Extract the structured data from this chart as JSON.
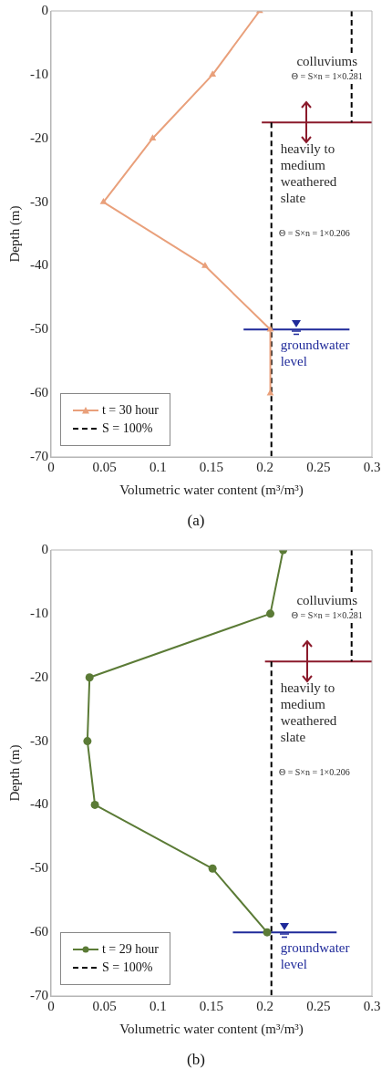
{
  "chart_data": [
    {
      "type": "line",
      "xlabel": "Volumetric water content (m³/m³)",
      "ylabel": "Depth (m)",
      "xlim": [
        0,
        0.3
      ],
      "xticks": [
        0,
        0.05,
        0.1,
        0.15,
        0.2,
        0.25,
        0.3
      ],
      "ylim": [
        -70,
        0
      ],
      "yticks": [
        0,
        -10,
        -20,
        -30,
        -40,
        -50,
        -60,
        -70
      ],
      "grid": false,
      "legend": "bottom left",
      "series": [
        {
          "name": "t = 30 hour",
          "color": "#e9a07b",
          "marker": "triangle",
          "x": [
            0.195,
            0.151,
            0.095,
            0.049,
            0.144,
            0.205,
            0.205
          ],
          "values": [
            0,
            -10,
            -20,
            -30,
            -40,
            -50,
            -60
          ]
        },
        {
          "name": "S = 100%",
          "color": "#000000",
          "marker": "none",
          "line_style": "dashed",
          "x": [
            0.206,
            0.206
          ],
          "values": [
            -17.5,
            -70
          ]
        },
        {
          "color": "#000000",
          "marker": "none",
          "line_style": "dashed",
          "x": [
            0.281,
            0.281
          ],
          "values": [
            0,
            -17.5
          ]
        },
        {
          "color": "#8b1a2b",
          "marker": "none",
          "x": [
            0.197,
            0.3
          ],
          "values": [
            -17.5,
            -17.5
          ]
        },
        {
          "color": "#1f2a9a",
          "marker": "none",
          "x": [
            0.18,
            0.279
          ],
          "values": [
            -50,
            -50
          ]
        }
      ],
      "annotations": [
        "colluviums",
        "Θ = S×n = 1×0.281",
        "heavily to medium weathered slate",
        "Θ = S×n = 1×0.206",
        "groundwater level",
        "(a)"
      ]
    },
    {
      "type": "line",
      "xlabel": "Volumetric water content (m³/m³)",
      "ylabel": "Depth (m)",
      "xlim": [
        0,
        0.3
      ],
      "xticks": [
        0,
        0.05,
        0.1,
        0.15,
        0.2,
        0.25,
        0.3
      ],
      "ylim": [
        -70,
        0
      ],
      "yticks": [
        0,
        -10,
        -20,
        -30,
        -40,
        -50,
        -60,
        -70
      ],
      "grid": false,
      "legend": "bottom left",
      "series": [
        {
          "name": "t = 29 hour",
          "color": "#5b7b36",
          "marker": "circle",
          "x": [
            0.217,
            0.205,
            0.036,
            0.034,
            0.041,
            0.151,
            0.202
          ],
          "values": [
            0,
            -10,
            -20,
            -30,
            -40,
            -50,
            -60
          ]
        },
        {
          "name": "S = 100%",
          "color": "#000000",
          "marker": "none",
          "line_style": "dashed",
          "x": [
            0.206,
            0.206
          ],
          "values": [
            -17.5,
            -70
          ]
        },
        {
          "color": "#000000",
          "marker": "none",
          "line_style": "dashed",
          "x": [
            0.281,
            0.281
          ],
          "values": [
            0,
            -17.5
          ]
        },
        {
          "color": "#8b1a2b",
          "marker": "none",
          "x": [
            0.2,
            0.3
          ],
          "values": [
            -17.5,
            -17.5
          ]
        },
        {
          "color": "#1f2a9a",
          "marker": "none",
          "x": [
            0.17,
            0.267
          ],
          "values": [
            -60,
            -60
          ]
        }
      ],
      "annotations": [
        "colluviums",
        "Θ = S×n = 1×0.281",
        "heavily to medium weathered slate",
        "Θ = S×n = 1×0.206",
        "groundwater level",
        "(b)"
      ]
    }
  ]
}
